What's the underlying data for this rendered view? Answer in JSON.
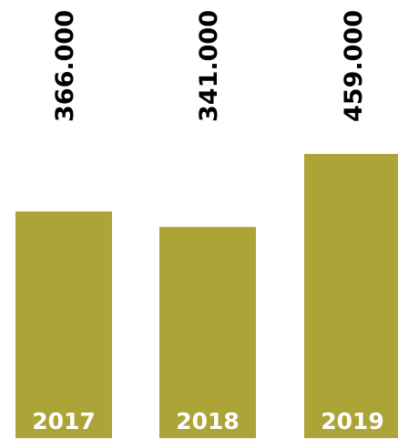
{
  "chart_data": {
    "type": "bar",
    "title": "",
    "xlabel": "",
    "ylabel": "",
    "categories": [
      "2017",
      "2018",
      "2019"
    ],
    "values": [
      366000,
      341000,
      459000
    ],
    "value_labels": [
      "366.000",
      "341.000",
      "459.000"
    ],
    "ylim": [
      0,
      459000
    ],
    "grid": false,
    "legend": "none",
    "colors": {
      "bar": "#aca437",
      "value_label": "#000000",
      "category_label": "#ffffff"
    }
  }
}
